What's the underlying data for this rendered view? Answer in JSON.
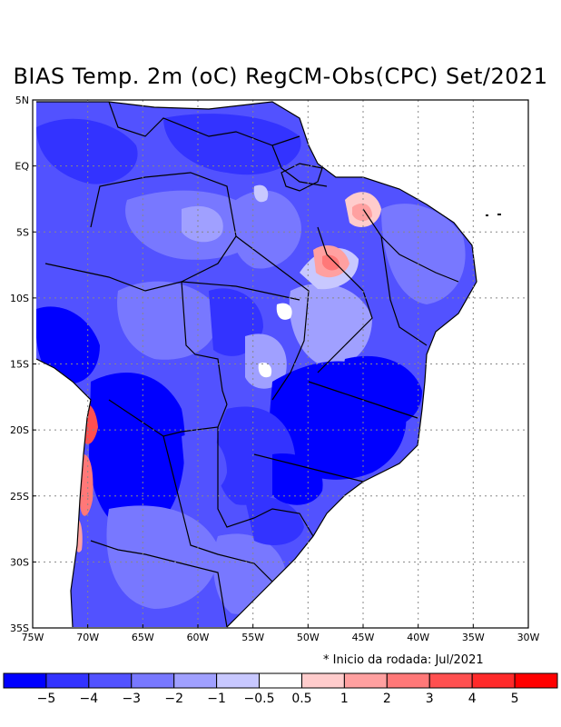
{
  "title": "BIAS Temp. 2m (oC) RegCM-Obs(CPC) Set/2021",
  "footnote": "* Inicio da rodada: Jul/2021",
  "axes": {
    "lon_labels": [
      "75W",
      "70W",
      "65W",
      "60W",
      "55W",
      "50W",
      "45W",
      "40W",
      "35W",
      "30W"
    ],
    "lat_labels": [
      "5N",
      "EQ",
      "5S",
      "10S",
      "15S",
      "20S",
      "25S",
      "30S",
      "35S"
    ]
  },
  "colorbar": {
    "colors": [
      "#0000ff",
      "#3333ff",
      "#5252ff",
      "#7878ff",
      "#a0a0ff",
      "#c8c8ff",
      "#ffffff",
      "#ffcccc",
      "#ffa0a0",
      "#ff7878",
      "#ff5050",
      "#ff2a2a",
      "#ff0000"
    ],
    "labels": [
      "−5",
      "−4",
      "−3",
      "−2",
      "−1",
      "−0.5",
      "0.5",
      "1",
      "2",
      "3",
      "4",
      "5"
    ]
  }
}
